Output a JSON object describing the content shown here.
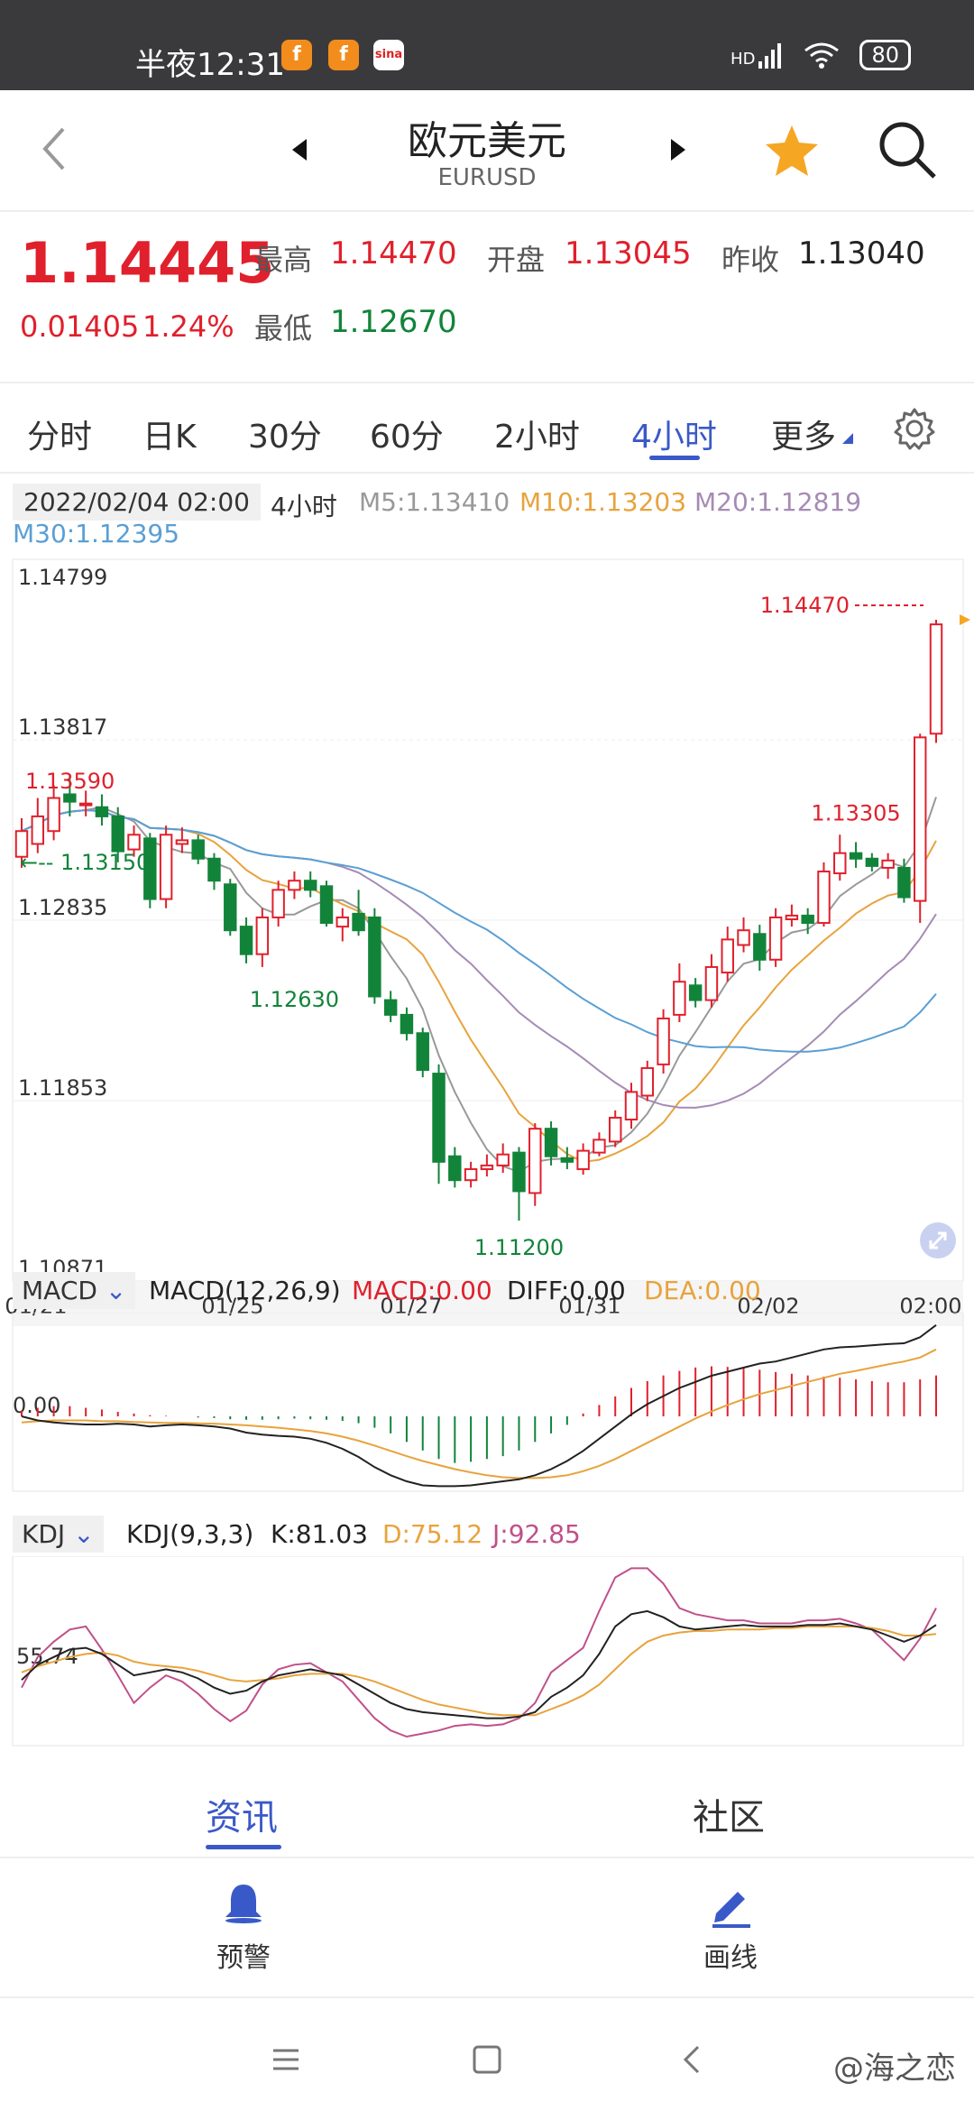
{
  "status_bar": {
    "time": "半夜12:31",
    "app_icons": [
      "f",
      "f",
      "sina"
    ],
    "network": "HD",
    "battery": "80"
  },
  "header": {
    "title": "欧元美元",
    "subtitle": "EURUSD",
    "icons": [
      "back-icon",
      "prev-arrow-icon",
      "next-arrow-icon",
      "star-icon",
      "search-icon"
    ]
  },
  "quote": {
    "price": "1.14445",
    "change": "0.01405",
    "change_pct": "1.24%",
    "high_label": "最高",
    "high": "1.14470",
    "open_label": "开盘",
    "open": "1.13045",
    "prev_close_label": "昨收",
    "prev_close": "1.13040",
    "low_label": "最低",
    "low": "1.12670"
  },
  "tabs": {
    "items": [
      "分时",
      "日K",
      "30分",
      "60分",
      "2小时",
      "4小时",
      "更多"
    ],
    "active": "4小时"
  },
  "chart_info": {
    "datetime": "2022/02/04 02:00",
    "period": "4小时",
    "m5": "M5:1.13410",
    "m10": "M10:1.13203",
    "m20": "M20:1.12819",
    "m30": "M30:1.12395"
  },
  "colors": {
    "up": "#e0202c",
    "down": "#12843a",
    "accent": "#3a59c8",
    "m5": "#999999",
    "m10": "#e8a33c",
    "m20": "#a58bb5",
    "m30": "#5a9fd4"
  },
  "chart_data": [
    {
      "type": "candlestick",
      "title": "",
      "y_ticks": [
        "1.14799",
        "1.13817",
        "1.12835",
        "1.11853",
        "1.10871"
      ],
      "ylim": [
        1.10871,
        1.14799
      ],
      "x_ticks": [
        "01/21",
        "01/25",
        "01/27",
        "01/31",
        "02/02",
        "02:00"
      ],
      "annotations": {
        "high_mark": "1.14470",
        "left_high": "1.13590",
        "left_low": "1.13150",
        "low1": "1.12630",
        "low2": "1.11200",
        "peak2": "1.13305"
      },
      "candles": [
        {
          "o": 1.1318,
          "c": 1.1332,
          "h": 1.1339,
          "l": 1.1312
        },
        {
          "o": 1.1325,
          "c": 1.134,
          "h": 1.135,
          "l": 1.132
        },
        {
          "o": 1.1332,
          "c": 1.135,
          "h": 1.1357,
          "l": 1.1327
        },
        {
          "o": 1.1352,
          "c": 1.1348,
          "h": 1.1362,
          "l": 1.134
        },
        {
          "o": 1.1347,
          "c": 1.1347,
          "h": 1.1354,
          "l": 1.134
        },
        {
          "o": 1.1345,
          "c": 1.134,
          "h": 1.1352,
          "l": 1.1335
        },
        {
          "o": 1.134,
          "c": 1.1321,
          "h": 1.1345,
          "l": 1.1315
        },
        {
          "o": 1.1322,
          "c": 1.133,
          "h": 1.1335,
          "l": 1.1318
        },
        {
          "o": 1.1328,
          "c": 1.1295,
          "h": 1.1331,
          "l": 1.129
        },
        {
          "o": 1.1295,
          "c": 1.133,
          "h": 1.1335,
          "l": 1.129
        },
        {
          "o": 1.1325,
          "c": 1.1327,
          "h": 1.1334,
          "l": 1.132
        },
        {
          "o": 1.1327,
          "c": 1.1317,
          "h": 1.133,
          "l": 1.1314
        },
        {
          "o": 1.1317,
          "c": 1.1305,
          "h": 1.132,
          "l": 1.13
        },
        {
          "o": 1.1303,
          "c": 1.1278,
          "h": 1.1306,
          "l": 1.1275
        },
        {
          "o": 1.128,
          "c": 1.1265,
          "h": 1.1285,
          "l": 1.126
        },
        {
          "o": 1.1265,
          "c": 1.1285,
          "h": 1.129,
          "l": 1.1258
        },
        {
          "o": 1.1285,
          "c": 1.13,
          "h": 1.1305,
          "l": 1.128
        },
        {
          "o": 1.13,
          "c": 1.1305,
          "h": 1.131,
          "l": 1.1295
        },
        {
          "o": 1.1305,
          "c": 1.13,
          "h": 1.131,
          "l": 1.1296
        },
        {
          "o": 1.1302,
          "c": 1.1282,
          "h": 1.1305,
          "l": 1.128
        },
        {
          "o": 1.128,
          "c": 1.1285,
          "h": 1.129,
          "l": 1.1272
        },
        {
          "o": 1.1287,
          "c": 1.1278,
          "h": 1.13,
          "l": 1.1275
        },
        {
          "o": 1.1285,
          "c": 1.1242,
          "h": 1.129,
          "l": 1.1238
        },
        {
          "o": 1.124,
          "c": 1.1232,
          "h": 1.1245,
          "l": 1.1228
        },
        {
          "o": 1.1232,
          "c": 1.1222,
          "h": 1.1236,
          "l": 1.1218
        },
        {
          "o": 1.1222,
          "c": 1.1202,
          "h": 1.1225,
          "l": 1.1198
        },
        {
          "o": 1.12,
          "c": 1.1152,
          "h": 1.1205,
          "l": 1.114
        },
        {
          "o": 1.1155,
          "c": 1.1142,
          "h": 1.116,
          "l": 1.1138
        },
        {
          "o": 1.1142,
          "c": 1.1148,
          "h": 1.1152,
          "l": 1.1138
        },
        {
          "o": 1.1148,
          "c": 1.115,
          "h": 1.1156,
          "l": 1.1144
        },
        {
          "o": 1.115,
          "c": 1.1156,
          "h": 1.1162,
          "l": 1.1146
        },
        {
          "o": 1.1157,
          "c": 1.1136,
          "h": 1.116,
          "l": 1.112
        },
        {
          "o": 1.1135,
          "c": 1.117,
          "h": 1.1173,
          "l": 1.1128
        },
        {
          "o": 1.117,
          "c": 1.1155,
          "h": 1.1174,
          "l": 1.115
        },
        {
          "o": 1.1154,
          "c": 1.1152,
          "h": 1.116,
          "l": 1.1148
        },
        {
          "o": 1.1148,
          "c": 1.1158,
          "h": 1.1162,
          "l": 1.1145
        },
        {
          "o": 1.1157,
          "c": 1.1164,
          "h": 1.1168,
          "l": 1.1155
        },
        {
          "o": 1.1163,
          "c": 1.1176,
          "h": 1.118,
          "l": 1.116
        },
        {
          "o": 1.1175,
          "c": 1.119,
          "h": 1.1195,
          "l": 1.117
        },
        {
          "o": 1.1188,
          "c": 1.1203,
          "h": 1.1207,
          "l": 1.1185
        },
        {
          "o": 1.1205,
          "c": 1.123,
          "h": 1.1235,
          "l": 1.12
        },
        {
          "o": 1.1232,
          "c": 1.125,
          "h": 1.126,
          "l": 1.1228
        },
        {
          "o": 1.1248,
          "c": 1.124,
          "h": 1.1252,
          "l": 1.1236
        },
        {
          "o": 1.124,
          "c": 1.1258,
          "h": 1.1265,
          "l": 1.1236
        },
        {
          "o": 1.1255,
          "c": 1.1273,
          "h": 1.128,
          "l": 1.125
        },
        {
          "o": 1.127,
          "c": 1.1278,
          "h": 1.1285,
          "l": 1.1266
        },
        {
          "o": 1.1276,
          "c": 1.1262,
          "h": 1.1281,
          "l": 1.1256
        },
        {
          "o": 1.1262,
          "c": 1.1285,
          "h": 1.129,
          "l": 1.1258
        },
        {
          "o": 1.1284,
          "c": 1.1286,
          "h": 1.1292,
          "l": 1.128
        },
        {
          "o": 1.1286,
          "c": 1.1282,
          "h": 1.129,
          "l": 1.1276
        },
        {
          "o": 1.1282,
          "c": 1.131,
          "h": 1.1315,
          "l": 1.128
        },
        {
          "o": 1.1309,
          "c": 1.132,
          "h": 1.133,
          "l": 1.1305
        },
        {
          "o": 1.132,
          "c": 1.1317,
          "h": 1.1326,
          "l": 1.1312
        },
        {
          "o": 1.1317,
          "c": 1.1313,
          "h": 1.132,
          "l": 1.131
        },
        {
          "o": 1.1312,
          "c": 1.1316,
          "h": 1.132,
          "l": 1.1306
        },
        {
          "o": 1.1312,
          "c": 1.1296,
          "h": 1.1317,
          "l": 1.1293
        },
        {
          "o": 1.1294,
          "c": 1.1383,
          "h": 1.1385,
          "l": 1.1282
        },
        {
          "o": 1.1385,
          "c": 1.14445,
          "h": 1.1447,
          "l": 1.138
        }
      ]
    },
    {
      "type": "bar",
      "title": "MACD(12,26,9)",
      "series": [
        {
          "name": "MACD:0.00",
          "color": "#e0202c"
        },
        {
          "name": "DIFF:0.00",
          "color": "#222222"
        },
        {
          "name": "DEA:0.00",
          "color": "#e8a33c"
        }
      ],
      "y_tick": "0.00",
      "hist": [
        0.1,
        0.15,
        0.18,
        0.18,
        0.15,
        0.12,
        0.08,
        0.05,
        0.02,
        0.01,
        0,
        -0.02,
        -0.03,
        -0.05,
        -0.06,
        -0.06,
        -0.05,
        -0.04,
        -0.05,
        -0.06,
        -0.08,
        -0.12,
        -0.2,
        -0.3,
        -0.45,
        -0.6,
        -0.75,
        -0.82,
        -0.8,
        -0.75,
        -0.7,
        -0.6,
        -0.45,
        -0.3,
        -0.15,
        0.05,
        0.2,
        0.35,
        0.5,
        0.62,
        0.72,
        0.8,
        0.86,
        0.88,
        0.87,
        0.85,
        0.82,
        0.78,
        0.75,
        0.72,
        0.7,
        0.68,
        0.65,
        0.62,
        0.6,
        0.6,
        0.65,
        0.72
      ],
      "diff": [
        0,
        -0.1,
        -0.15,
        -0.18,
        -0.2,
        -0.2,
        -0.18,
        -0.2,
        -0.25,
        -0.22,
        -0.2,
        -0.22,
        -0.25,
        -0.3,
        -0.4,
        -0.45,
        -0.48,
        -0.5,
        -0.55,
        -0.65,
        -0.8,
        -1.0,
        -1.25,
        -1.45,
        -1.6,
        -1.7,
        -1.72,
        -1.72,
        -1.7,
        -1.65,
        -1.6,
        -1.55,
        -1.45,
        -1.3,
        -1.1,
        -0.85,
        -0.55,
        -0.25,
        0.05,
        0.3,
        0.5,
        0.7,
        0.85,
        1.0,
        1.1,
        1.2,
        1.3,
        1.35,
        1.45,
        1.55,
        1.65,
        1.7,
        1.72,
        1.75,
        1.78,
        1.8,
        1.95,
        2.25
      ],
      "dea": [
        -0.15,
        -0.12,
        -0.1,
        -0.1,
        -0.1,
        -0.12,
        -0.12,
        -0.14,
        -0.15,
        -0.16,
        -0.16,
        -0.17,
        -0.18,
        -0.2,
        -0.22,
        -0.25,
        -0.28,
        -0.32,
        -0.36,
        -0.42,
        -0.5,
        -0.6,
        -0.72,
        -0.85,
        -0.98,
        -1.1,
        -1.2,
        -1.3,
        -1.38,
        -1.45,
        -1.5,
        -1.52,
        -1.52,
        -1.5,
        -1.45,
        -1.35,
        -1.22,
        -1.05,
        -0.85,
        -0.65,
        -0.45,
        -0.25,
        -0.05,
        0.12,
        0.28,
        0.42,
        0.55,
        0.65,
        0.75,
        0.85,
        0.95,
        1.05,
        1.12,
        1.2,
        1.28,
        1.35,
        1.45,
        1.65
      ]
    },
    {
      "type": "line",
      "title": "KDJ(9,3,3)",
      "series": [
        {
          "name": "K:81.03",
          "color": "#222222"
        },
        {
          "name": "D:75.12",
          "color": "#e8a33c"
        },
        {
          "name": "J:92.85",
          "color": "#c0508a"
        }
      ],
      "y_tick": "55.74",
      "k": [
        45,
        55,
        60,
        65,
        66,
        62,
        55,
        48,
        50,
        52,
        50,
        46,
        40,
        36,
        38,
        44,
        48,
        50,
        52,
        50,
        48,
        42,
        36,
        30,
        26,
        24,
        23,
        22,
        21,
        20,
        20,
        21,
        24,
        34,
        40,
        48,
        62,
        80,
        88,
        90,
        86,
        80,
        78,
        79,
        80,
        81,
        80,
        80,
        80,
        81,
        81,
        82,
        80,
        78,
        74,
        70,
        74,
        81
      ],
      "d": [
        50,
        54,
        57,
        60,
        62,
        63,
        61,
        57,
        55,
        54,
        53,
        51,
        48,
        45,
        44,
        45,
        46,
        48,
        49,
        49,
        49,
        47,
        44,
        40,
        36,
        32,
        29,
        27,
        25,
        23,
        22,
        22,
        22,
        26,
        30,
        35,
        42,
        52,
        62,
        70,
        74,
        76,
        77,
        77,
        78,
        78,
        78,
        79,
        79,
        80,
        80,
        80,
        80,
        79,
        77,
        74,
        74,
        75
      ],
      "j": [
        40,
        60,
        70,
        78,
        80,
        65,
        48,
        30,
        40,
        48,
        44,
        36,
        26,
        18,
        25,
        42,
        52,
        55,
        56,
        50,
        44,
        32,
        20,
        12,
        8,
        10,
        12,
        15,
        16,
        15,
        16,
        20,
        30,
        50,
        58,
        66,
        90,
        112,
        118,
        118,
        108,
        92,
        88,
        86,
        84,
        84,
        82,
        82,
        82,
        84,
        84,
        85,
        82,
        78,
        68,
        58,
        72,
        92
      ]
    }
  ],
  "sub_panels": {
    "macd_selector": "MACD",
    "kdj_selector": "KDJ"
  },
  "bottom_tabs": {
    "items": [
      "资讯",
      "社区"
    ],
    "active": "资讯"
  },
  "actions": {
    "alert": "预警",
    "draw": "画线"
  },
  "watermark": "@海之恋"
}
